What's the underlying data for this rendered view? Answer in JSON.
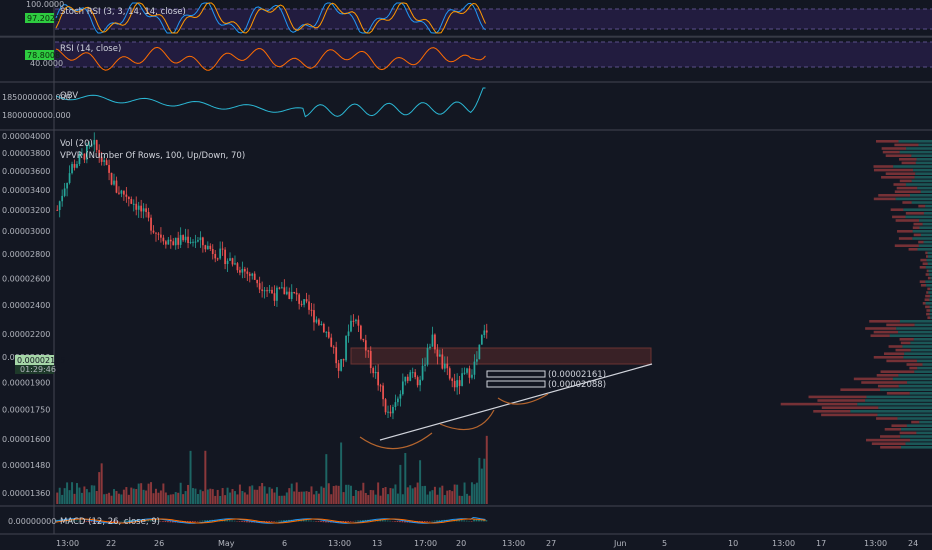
{
  "colors": {
    "background": "#131722",
    "up": "#26a69a",
    "down": "#ef5350",
    "stoch_k": "#2196f3",
    "stoch_d": "#ff9800",
    "rsi": "#ff6d00",
    "obv": "#2bb7d4",
    "band_fill": "#2a1f4a",
    "badge_green": "#2ecc40",
    "resistance_box": "#5a2a2a",
    "trendline": "#d1d4dc",
    "cup_arc": "#b5652e"
  },
  "panes": {
    "stoch": {
      "title": "Stoch RSI (3, 3, 14, 14, close)",
      "axis_labels": [
        "100.0000",
        "97.2022"
      ]
    },
    "rsi": {
      "title": "RSI (14, close)",
      "axis_labels": [
        "78.8008",
        "40.0000"
      ]
    },
    "obv": {
      "title": "OBV",
      "axis_labels": [
        "1850000000.000",
        "1800000000.000"
      ]
    },
    "main": {
      "title_vol": "Vol (20)",
      "title_vpvr": "VPVR (Number Of Rows, 100, Up/Down, 70)"
    },
    "macd": {
      "title": "MACD (12, 26, close, 9)",
      "axis_labels": [
        "0.00000000"
      ]
    }
  },
  "price_badges": {
    "last": "0.00002175",
    "countdown": "01:29:46"
  },
  "annotations": {
    "upper_target": "(0.00002161)",
    "lower_target": "(0.00002088)"
  },
  "chart_data": {
    "type": "candlestick",
    "y_scale": "log",
    "price_axis_ticks": [
      "0.00004000",
      "0.00003800",
      "0.00003600",
      "0.00003400",
      "0.00003200",
      "0.00003000",
      "0.00002800",
      "0.00002600",
      "0.00002400",
      "0.00002200",
      "0.00002050",
      "0.00001900",
      "0.00001750",
      "0.00001600",
      "0.00001480",
      "0.00001360"
    ],
    "price_axis_values": [
      4e-05,
      3.8e-05,
      3.6e-05,
      3.4e-05,
      3.2e-05,
      3e-05,
      2.8e-05,
      2.6e-05,
      2.4e-05,
      2.2e-05,
      2.05e-05,
      1.9e-05,
      1.75e-05,
      1.6e-05,
      1.48e-05,
      1.36e-05
    ],
    "time_axis_labels": [
      "13:00",
      "22",
      "26",
      "May",
      "6",
      "13:00",
      "13",
      "17:00",
      "20",
      "13:00",
      "27",
      "Jun",
      "5",
      "10",
      "13:00",
      "17",
      "13:00",
      "24"
    ],
    "price_path": [
      [
        0,
        3.2e-05
      ],
      [
        3,
        3.45e-05
      ],
      [
        6,
        3.65e-05
      ],
      [
        9,
        3.72e-05
      ],
      [
        12,
        3.82e-05
      ],
      [
        15,
        3.88e-05
      ],
      [
        18,
        3.72e-05
      ],
      [
        21,
        3.55e-05
      ],
      [
        24,
        3.4e-05
      ],
      [
        28,
        3.35e-05
      ],
      [
        32,
        3.25e-05
      ],
      [
        36,
        3.12e-05
      ],
      [
        40,
        3e-05
      ],
      [
        44,
        2.93e-05
      ],
      [
        48,
        2.9e-05
      ],
      [
        52,
        2.94e-05
      ],
      [
        56,
        2.92e-05
      ],
      [
        60,
        2.87e-05
      ],
      [
        64,
        2.82e-05
      ],
      [
        68,
        2.77e-05
      ],
      [
        72,
        2.72e-05
      ],
      [
        76,
        2.66e-05
      ],
      [
        80,
        2.6e-05
      ],
      [
        84,
        2.53e-05
      ],
      [
        88,
        2.48e-05
      ],
      [
        92,
        2.5e-05
      ],
      [
        96,
        2.47e-05
      ],
      [
        100,
        2.4e-05
      ],
      [
        104,
        2.32e-05
      ],
      [
        108,
        2.25e-05
      ],
      [
        112,
        2.1e-05
      ],
      [
        114,
        1.95e-05
      ],
      [
        116,
        2.05e-05
      ],
      [
        118,
        2.25e-05
      ],
      [
        120,
        2.32e-05
      ],
      [
        122,
        2.25e-05
      ],
      [
        124,
        2.15e-05
      ],
      [
        126,
        2.05e-05
      ],
      [
        128,
        1.98e-05
      ],
      [
        130,
        1.9e-05
      ],
      [
        132,
        1.8e-05
      ],
      [
        134,
        1.72e-05
      ],
      [
        136,
        1.74e-05
      ],
      [
        138,
        1.8e-05
      ],
      [
        140,
        1.88e-05
      ],
      [
        142,
        1.94e-05
      ],
      [
        144,
        1.98e-05
      ],
      [
        146,
        1.92e-05
      ],
      [
        148,
        1.96e-05
      ],
      [
        150,
        2.12e-05
      ],
      [
        152,
        2.16e-05
      ],
      [
        154,
        2.08e-05
      ],
      [
        156,
        2e-05
      ],
      [
        158,
        1.95e-05
      ],
      [
        160,
        1.9e-05
      ],
      [
        162,
        1.88e-05
      ],
      [
        164,
        1.92e-05
      ],
      [
        166,
        1.95e-05
      ],
      [
        168,
        1.98e-05
      ],
      [
        170,
        2.03e-05
      ],
      [
        172,
        2.17e-05
      ],
      [
        174,
        2.23e-05
      ]
    ],
    "vpvr_note": "Volume profile histogram on right side, heaviest near 0.0000190"
  }
}
